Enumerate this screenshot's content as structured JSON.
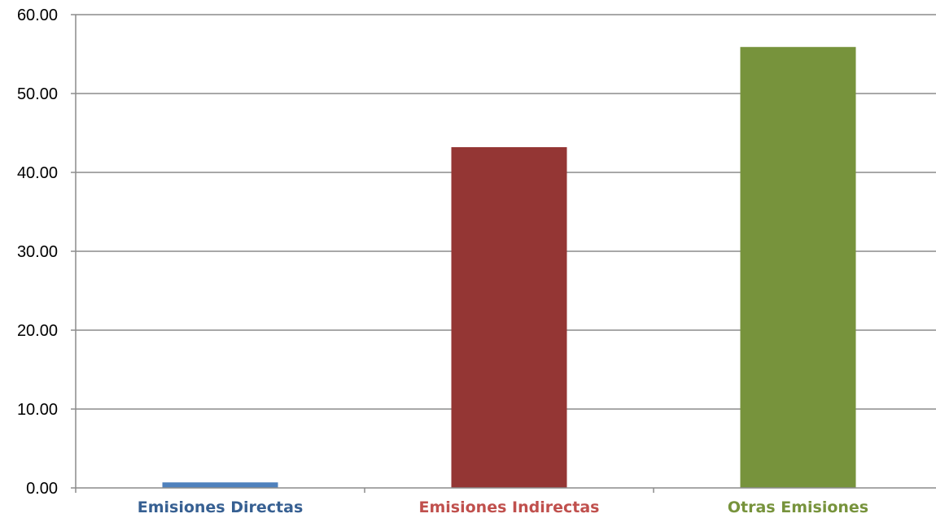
{
  "chart_data": {
    "type": "bar",
    "categories": [
      "Emisiones Directas",
      "Emisiones Indirectas",
      "Otras Emisiones"
    ],
    "values": [
      0.7,
      43.2,
      55.9
    ],
    "colors": [
      "#4F81BD",
      "#943634",
      "#77933C"
    ],
    "label_colors": [
      "#376092",
      "#C0504D",
      "#77933C"
    ],
    "ylim": [
      0,
      60
    ],
    "yticks": [
      0,
      10,
      20,
      30,
      40,
      50,
      60
    ],
    "ytick_labels": [
      "0.00",
      "10.00",
      "20.00",
      "30.00",
      "40.00",
      "50.00",
      "60.00"
    ],
    "grid": true,
    "title": "",
    "xlabel": "",
    "ylabel": ""
  }
}
